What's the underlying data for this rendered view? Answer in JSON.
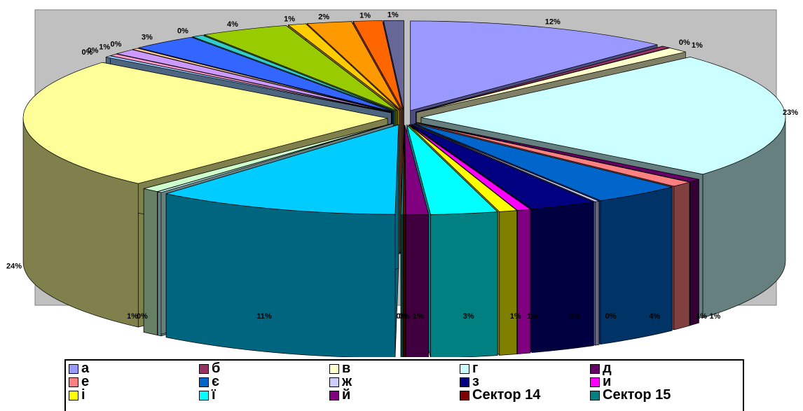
{
  "chart_data": {
    "type": "pie",
    "title": "",
    "legend_position": "bottom",
    "slices": [
      {
        "label": "а",
        "pct_label": "12%",
        "value": 12,
        "color": "#9999FF"
      },
      {
        "label": "б",
        "pct_label": "0%",
        "value": 0.4,
        "color": "#993366"
      },
      {
        "label": "в",
        "pct_label": "1%",
        "value": 1,
        "color": "#FFFFCC"
      },
      {
        "label": "г",
        "pct_label": "23%",
        "value": 23,
        "color": "#CCFFFF"
      },
      {
        "label": "д",
        "pct_label": "1%",
        "value": 0.6,
        "color": "#660066"
      },
      {
        "label": "е",
        "pct_label": "1%",
        "value": 1,
        "color": "#FF8080"
      },
      {
        "label": "є",
        "pct_label": "4%",
        "value": 4,
        "color": "#0066CC"
      },
      {
        "label": "ж",
        "pct_label": "0%",
        "value": 0.2,
        "color": "#CCCCFF"
      },
      {
        "label": "з",
        "pct_label": "3%",
        "value": 3,
        "color": "#000080"
      },
      {
        "label": "и",
        "pct_label": "1%",
        "value": 0.6,
        "color": "#FF00FF"
      },
      {
        "label": "і",
        "pct_label": "1%",
        "value": 0.8,
        "color": "#FFFF00"
      },
      {
        "label": "ї",
        "pct_label": "3%",
        "value": 3,
        "color": "#00FFFF"
      },
      {
        "label": "й",
        "pct_label": "1%",
        "value": 1,
        "color": "#800080"
      },
      {
        "label": "Сектор 14",
        "pct_label": "0%",
        "value": 0.1,
        "color": "#800000"
      },
      {
        "label": "Сектор 15",
        "pct_label": "0%",
        "value": 0.1,
        "color": "#008080"
      },
      {
        "label": "",
        "pct_label": "11%",
        "value": 11,
        "color": "#00CCFF"
      },
      {
        "label": "",
        "pct_label": "0%",
        "value": 0.2,
        "color": "#CCFFFF"
      },
      {
        "label": "",
        "pct_label": "1%",
        "value": 0.8,
        "color": "#CCFFCC"
      },
      {
        "label": "",
        "pct_label": "24%",
        "value": 24,
        "color": "#FFFF99"
      },
      {
        "label": "",
        "pct_label": "0%",
        "value": 0.3,
        "color": "#99CCFF"
      },
      {
        "label": "",
        "pct_label": "0%",
        "value": 0.4,
        "color": "#FF99CC"
      },
      {
        "label": "",
        "pct_label": "1%",
        "value": 1,
        "color": "#CC99FF"
      },
      {
        "label": "",
        "pct_label": "0%",
        "value": 0.3,
        "color": "#FFCC99"
      },
      {
        "label": "",
        "pct_label": "3%",
        "value": 3,
        "color": "#3366FF"
      },
      {
        "label": "",
        "pct_label": "0%",
        "value": 0.5,
        "color": "#33CCCC"
      },
      {
        "label": "",
        "pct_label": "4%",
        "value": 4,
        "color": "#99CC00"
      },
      {
        "label": "",
        "pct_label": "1%",
        "value": 0.8,
        "color": "#FFCC00"
      },
      {
        "label": "",
        "pct_label": "2%",
        "value": 2,
        "color": "#FF9900"
      },
      {
        "label": "",
        "pct_label": "1%",
        "value": 1.3,
        "color": "#FF6600"
      },
      {
        "label": "",
        "pct_label": "1%",
        "value": 0.9,
        "color": "#666699"
      }
    ],
    "plot_area_color": "#C0C0C0"
  },
  "legend": {
    "items": [
      {
        "label": "а",
        "color": "#9999FF"
      },
      {
        "label": "б",
        "color": "#993366"
      },
      {
        "label": "в",
        "color": "#FFFFCC"
      },
      {
        "label": "г",
        "color": "#CCFFFF"
      },
      {
        "label": "д",
        "color": "#660066"
      },
      {
        "label": "е",
        "color": "#FF8080"
      },
      {
        "label": "є",
        "color": "#0066CC"
      },
      {
        "label": "ж",
        "color": "#CCCCFF"
      },
      {
        "label": "з",
        "color": "#000080"
      },
      {
        "label": "и",
        "color": "#FF00FF"
      },
      {
        "label": "і",
        "color": "#FFFF00"
      },
      {
        "label": "ї",
        "color": "#00FFFF"
      },
      {
        "label": "й",
        "color": "#800080"
      },
      {
        "label": "Сектор 14",
        "color": "#800000"
      },
      {
        "label": "Сектор 15",
        "color": "#008080"
      }
    ]
  }
}
